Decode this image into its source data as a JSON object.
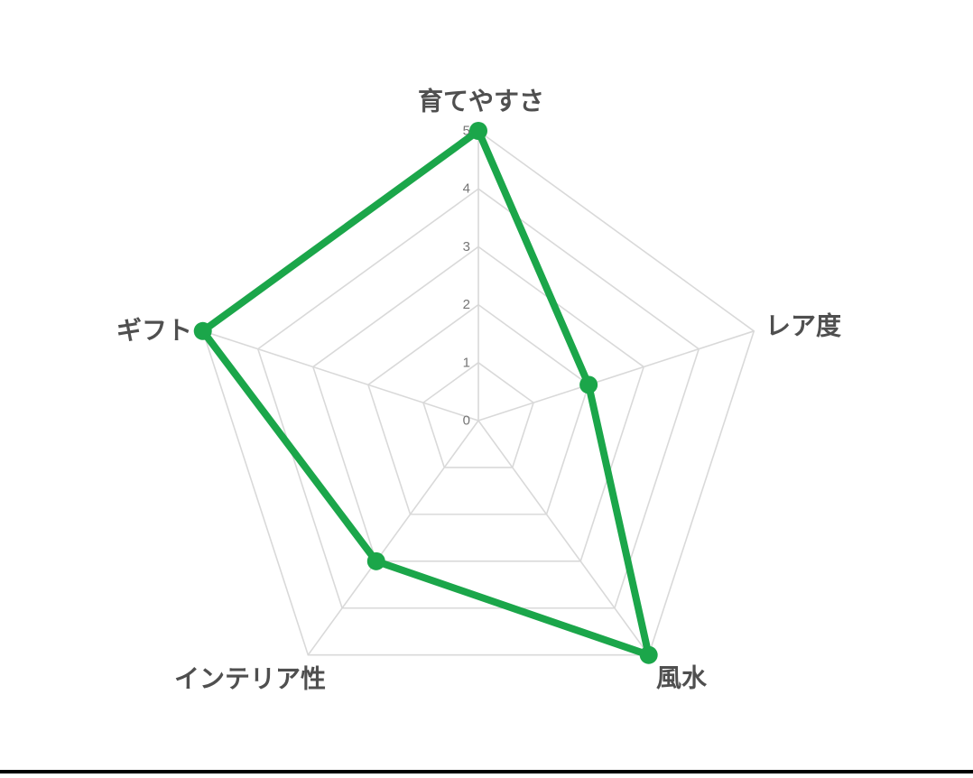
{
  "page": {
    "background": "#ffffff",
    "bottom_border_color": "#000000"
  },
  "chart_data": {
    "type": "radar",
    "categories": [
      "育てやすさ",
      "レア度",
      "風水",
      "インテリア性",
      "ギフト"
    ],
    "values": [
      5,
      2,
      5,
      3,
      5
    ],
    "ticks": [
      "0",
      "1",
      "2",
      "3",
      "4",
      "5"
    ],
    "rmin": 0,
    "rmax": 5,
    "grid_shape": "pentagon",
    "grid_on": true,
    "legend": "none",
    "fill": "none",
    "line_color": "#1BA64A",
    "point_color": "#1BA64A",
    "grid_color": "#D9D9D9",
    "tick_color": "#757575",
    "label_color": "#4F4F4F"
  }
}
